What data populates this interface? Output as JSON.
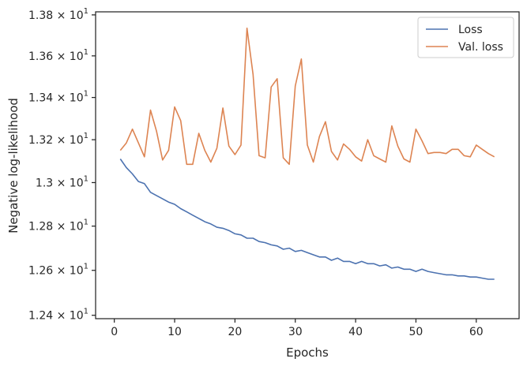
{
  "chart_data": {
    "type": "line",
    "title": "",
    "xlabel": "Epochs",
    "ylabel": "Negative log-likelihood",
    "xlim": [
      -3.1,
      67.1
    ],
    "ylim": [
      12.385,
      13.815
    ],
    "xticks": [
      0,
      10,
      20,
      30,
      40,
      50,
      60
    ],
    "xtick_labels": [
      "0",
      "10",
      "20",
      "30",
      "40",
      "50",
      "60"
    ],
    "yticks": [
      12.4,
      12.6,
      12.8,
      13.0,
      13.2,
      13.4,
      13.6,
      13.8
    ],
    "ytick_labels": [
      {
        "mantissa": "1.24",
        "times": "×",
        "base": "10",
        "exp": "1"
      },
      {
        "mantissa": "1.26",
        "times": "×",
        "base": "10",
        "exp": "1"
      },
      {
        "mantissa": "1.28",
        "times": "×",
        "base": "10",
        "exp": "1"
      },
      {
        "mantissa": "1.3",
        "times": "×",
        "base": "10",
        "exp": "1"
      },
      {
        "mantissa": "1.32",
        "times": "×",
        "base": "10",
        "exp": "1"
      },
      {
        "mantissa": "1.34",
        "times": "×",
        "base": "10",
        "exp": "1"
      },
      {
        "mantissa": "1.36",
        "times": "×",
        "base": "10",
        "exp": "1"
      },
      {
        "mantissa": "1.38",
        "times": "×",
        "base": "10",
        "exp": "1"
      }
    ],
    "yscale": "log",
    "grid": false,
    "legend_position": "top-right",
    "x": [
      1,
      2,
      3,
      4,
      5,
      6,
      7,
      8,
      9,
      10,
      11,
      12,
      13,
      14,
      15,
      16,
      17,
      18,
      19,
      20,
      21,
      22,
      23,
      24,
      25,
      26,
      27,
      28,
      29,
      30,
      31,
      32,
      33,
      34,
      35,
      36,
      37,
      38,
      39,
      40,
      41,
      42,
      43,
      44,
      45,
      46,
      47,
      48,
      49,
      50,
      51,
      52,
      53,
      54,
      55,
      56,
      57,
      58,
      59,
      60,
      61,
      62,
      63
    ],
    "series": [
      {
        "name": "Loss",
        "color": "#4c72b0",
        "values": [
          13.11,
          13.07,
          13.04,
          13.005,
          12.995,
          12.955,
          12.94,
          12.925,
          12.91,
          12.9,
          12.88,
          12.865,
          12.85,
          12.835,
          12.82,
          12.81,
          12.795,
          12.79,
          12.78,
          12.765,
          12.76,
          12.745,
          12.745,
          12.73,
          12.725,
          12.715,
          12.71,
          12.695,
          12.7,
          12.685,
          12.69,
          12.68,
          12.67,
          12.66,
          12.66,
          12.645,
          12.655,
          12.64,
          12.64,
          12.63,
          12.64,
          12.63,
          12.63,
          12.62,
          12.625,
          12.61,
          12.615,
          12.605,
          12.605,
          12.595,
          12.605,
          12.595,
          12.59,
          12.585,
          12.58,
          12.58,
          12.575,
          12.575,
          12.57,
          12.57,
          12.565,
          12.56,
          12.56
        ]
      },
      {
        "name": "Val. loss",
        "color": "#dd8452",
        "values": [
          13.15,
          13.185,
          13.25,
          13.185,
          13.12,
          13.34,
          13.24,
          13.105,
          13.15,
          13.355,
          13.29,
          13.085,
          13.085,
          13.23,
          13.15,
          13.095,
          13.16,
          13.35,
          13.17,
          13.13,
          13.175,
          13.735,
          13.51,
          13.125,
          13.115,
          13.45,
          13.49,
          13.115,
          13.085,
          13.455,
          13.585,
          13.175,
          13.095,
          13.215,
          13.285,
          13.145,
          13.105,
          13.18,
          13.155,
          13.12,
          13.1,
          13.2,
          13.125,
          13.11,
          13.095,
          13.265,
          13.17,
          13.11,
          13.095,
          13.25,
          13.195,
          13.135,
          13.14,
          13.14,
          13.135,
          13.155,
          13.155,
          13.125,
          13.12,
          13.175,
          13.155,
          13.135,
          13.12
        ]
      }
    ]
  }
}
